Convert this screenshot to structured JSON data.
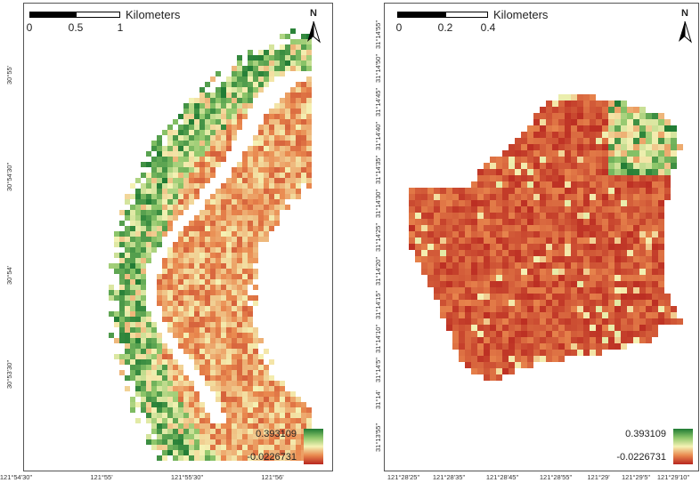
{
  "left": {
    "scalebar": {
      "title": "Kilometers",
      "ticks": [
        "0",
        "0.5",
        "1"
      ]
    },
    "north_label": "N",
    "legend": {
      "high": "0.393109",
      "low": "-0.0226731"
    },
    "y_labels": [
      "30°55'",
      "30°54'30\"",
      "30°54'",
      "30°53'30\""
    ],
    "x_labels": [
      "121°54'30\"",
      "121°55'",
      "121°55'30\"",
      "121°56'"
    ]
  },
  "right": {
    "scalebar": {
      "title": "Kilometers",
      "ticks": [
        "0",
        "0.2",
        "0.4"
      ]
    },
    "north_label": "N",
    "legend": {
      "high": "0.393109",
      "low": "-0.0226731"
    },
    "y_labels": [
      "31°14'55\"",
      "31°14'50\"",
      "31°14'45\"",
      "31°14'40\"",
      "31°14'35\"",
      "31°14'30\"",
      "31°14'25\"",
      "31°14'20\"",
      "31°14'15\"",
      "31°14'10\"",
      "31°14'5\"",
      "31°14'",
      "31°13'55\""
    ],
    "x_labels": [
      "121°28'25\"",
      "121°28'35\"",
      "121°28'45\"",
      "121°28'55\"",
      "121°29'",
      "121°29'5\"",
      "121°29'10\""
    ]
  },
  "colors": {
    "high": "#1e7a33",
    "mid": "#f5f2b4",
    "low": "#b8261f"
  }
}
